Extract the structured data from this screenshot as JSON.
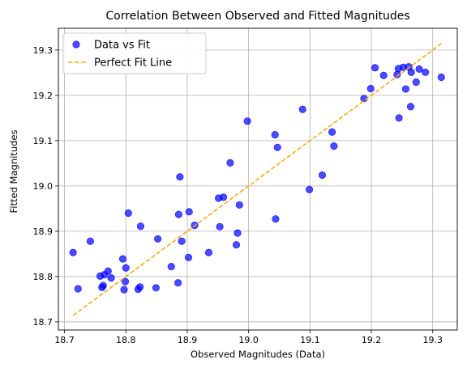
{
  "chart_data": {
    "type": "scatter",
    "title": "Correlation Between Observed and Fitted Magnitudes",
    "xlabel": "Observed Magnitudes (Data)",
    "ylabel": "Fitted Magnitudes",
    "xlim": [
      18.69,
      19.34
    ],
    "ylim": [
      18.682,
      19.348
    ],
    "xticks": [
      18.7,
      18.8,
      18.9,
      19.0,
      19.1,
      19.2,
      19.3
    ],
    "yticks": [
      18.7,
      18.8,
      18.9,
      19.0,
      19.1,
      19.2,
      19.3
    ],
    "grid": true,
    "legend_position": "top-left",
    "series": [
      {
        "name": "Data vs Fit",
        "kind": "scatter",
        "color": "#0000ff",
        "points": [
          [
            18.714,
            18.853
          ],
          [
            18.722,
            18.773
          ],
          [
            18.742,
            18.878
          ],
          [
            18.758,
            18.801
          ],
          [
            18.761,
            18.776
          ],
          [
            18.763,
            18.78
          ],
          [
            18.765,
            18.804
          ],
          [
            18.771,
            18.812
          ],
          [
            18.776,
            18.797
          ],
          [
            18.795,
            18.839
          ],
          [
            18.797,
            18.771
          ],
          [
            18.799,
            18.789
          ],
          [
            18.8,
            18.819
          ],
          [
            18.804,
            18.94
          ],
          [
            18.82,
            18.772
          ],
          [
            18.823,
            18.777
          ],
          [
            18.824,
            18.911
          ],
          [
            18.849,
            18.775
          ],
          [
            18.852,
            18.883
          ],
          [
            18.874,
            18.822
          ],
          [
            18.885,
            18.786
          ],
          [
            18.886,
            18.937
          ],
          [
            18.888,
            19.02
          ],
          [
            18.891,
            18.878
          ],
          [
            18.902,
            18.842
          ],
          [
            18.903,
            18.943
          ],
          [
            18.912,
            18.913
          ],
          [
            18.935,
            18.853
          ],
          [
            18.951,
            18.973
          ],
          [
            18.953,
            18.91
          ],
          [
            18.959,
            18.975
          ],
          [
            18.97,
            19.051
          ],
          [
            18.98,
            18.87
          ],
          [
            18.982,
            18.896
          ],
          [
            18.985,
            18.958
          ],
          [
            18.998,
            19.143
          ],
          [
            19.043,
            19.113
          ],
          [
            19.044,
            18.927
          ],
          [
            19.047,
            19.085
          ],
          [
            19.088,
            19.169
          ],
          [
            19.099,
            18.992
          ],
          [
            19.12,
            19.024
          ],
          [
            19.136,
            19.119
          ],
          [
            19.139,
            19.088
          ],
          [
            19.188,
            19.193
          ],
          [
            19.199,
            19.215
          ],
          [
            19.206,
            19.261
          ],
          [
            19.22,
            19.244
          ],
          [
            19.242,
            19.246
          ],
          [
            19.244,
            19.259
          ],
          [
            19.245,
            19.15
          ],
          [
            19.252,
            19.262
          ],
          [
            19.256,
            19.214
          ],
          [
            19.261,
            19.263
          ],
          [
            19.264,
            19.175
          ],
          [
            19.265,
            19.251
          ],
          [
            19.273,
            19.229
          ],
          [
            19.278,
            19.258
          ],
          [
            19.288,
            19.251
          ],
          [
            19.314,
            19.24
          ]
        ]
      },
      {
        "name": "Perfect Fit Line",
        "kind": "line",
        "style": "dashed",
        "color": "#ffa500",
        "points": [
          [
            18.714,
            18.714
          ],
          [
            19.314,
            19.314
          ]
        ]
      }
    ]
  }
}
